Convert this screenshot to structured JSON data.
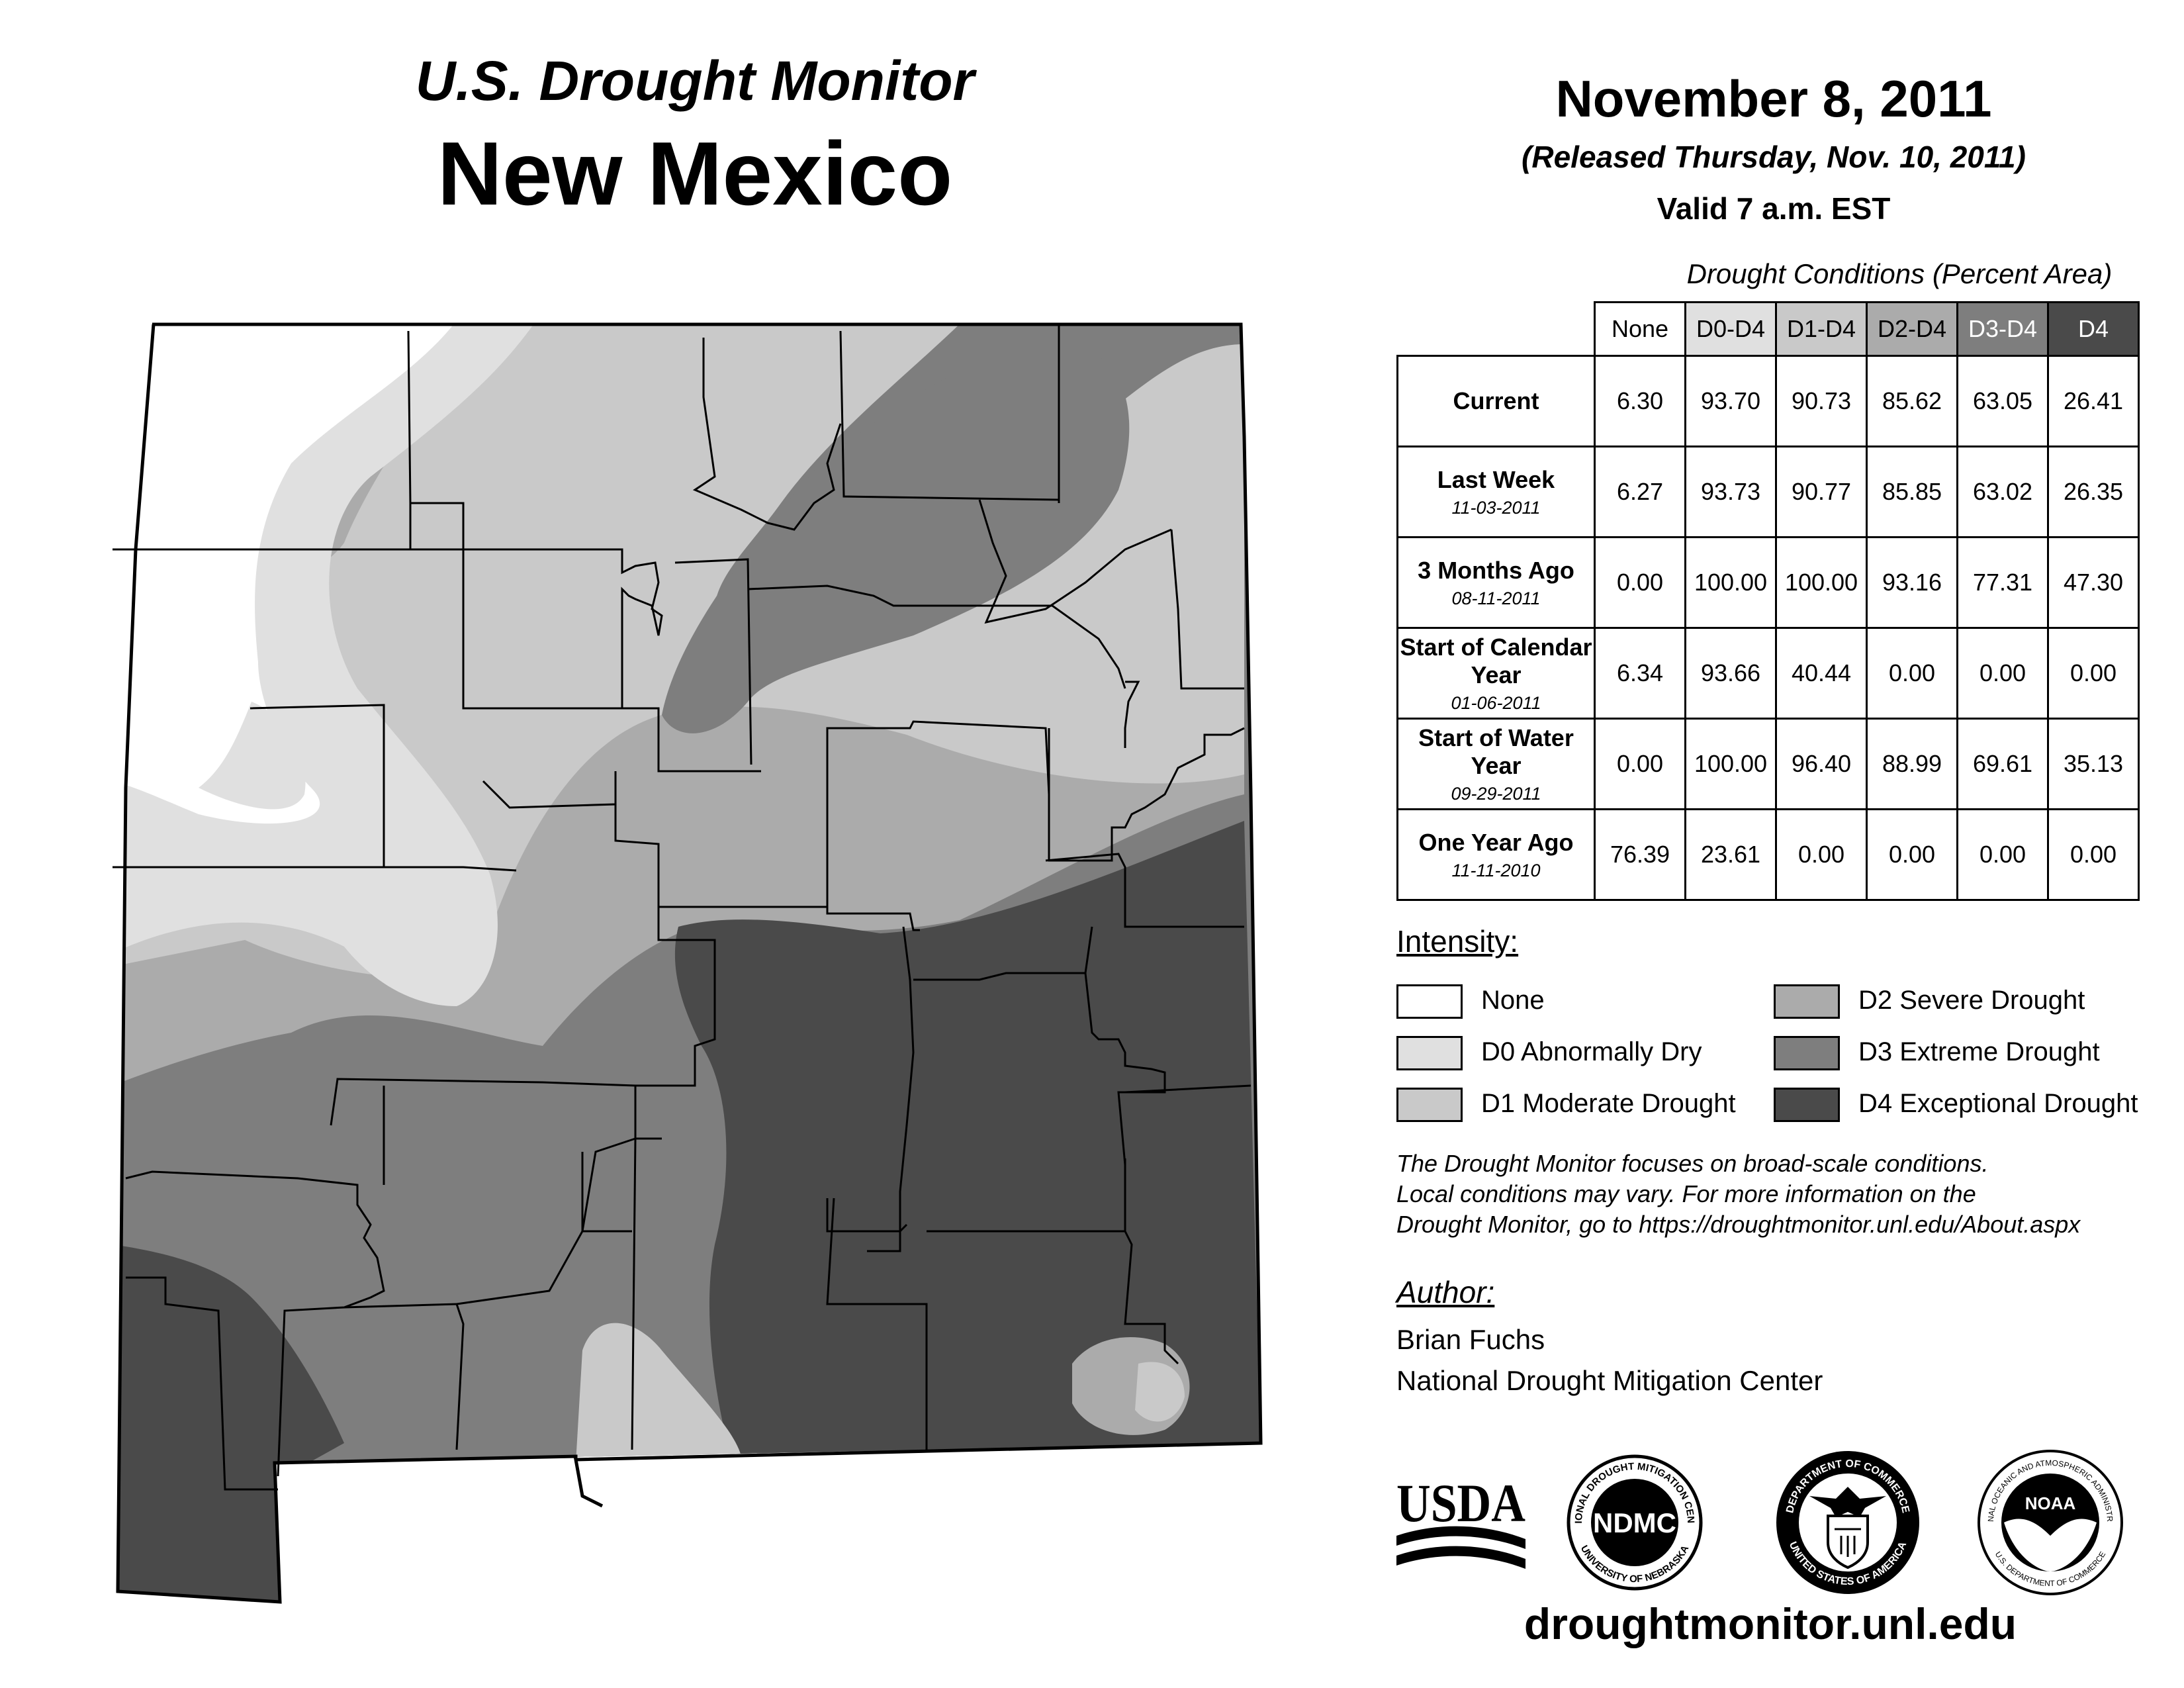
{
  "header": {
    "subtitle": "U.S. Drought Monitor",
    "state": "New Mexico",
    "date": "November 8, 2011",
    "released": "(Released Thursday, Nov. 10, 2011)",
    "valid": "Valid 7 a.m. EST"
  },
  "table": {
    "caption": "Drought Conditions (Percent Area)",
    "columns": [
      "None",
      "D0-D4",
      "D1-D4",
      "D2-D4",
      "D3-D4",
      "D4"
    ],
    "rows": [
      {
        "label": "Current",
        "date": "",
        "values": [
          "6.30",
          "93.70",
          "90.73",
          "85.62",
          "63.05",
          "26.41"
        ]
      },
      {
        "label": "Last Week",
        "date": "11-03-2011",
        "values": [
          "6.27",
          "93.73",
          "90.77",
          "85.85",
          "63.02",
          "26.35"
        ]
      },
      {
        "label": "3 Months Ago",
        "date": "08-11-2011",
        "values": [
          "0.00",
          "100.00",
          "100.00",
          "93.16",
          "77.31",
          "47.30"
        ]
      },
      {
        "label": "Start of Calendar Year",
        "date": "01-06-2011",
        "values": [
          "6.34",
          "93.66",
          "40.44",
          "0.00",
          "0.00",
          "0.00"
        ]
      },
      {
        "label": "Start of Water Year",
        "date": "09-29-2011",
        "values": [
          "0.00",
          "100.00",
          "96.40",
          "88.99",
          "69.61",
          "35.13"
        ]
      },
      {
        "label": "One Year Ago",
        "date": "11-11-2010",
        "values": [
          "76.39",
          "23.61",
          "0.00",
          "0.00",
          "0.00",
          "0.00"
        ]
      }
    ]
  },
  "legend": {
    "title": "Intensity:",
    "items": [
      {
        "label": "None",
        "color": "#ffffff"
      },
      {
        "label": "D0 Abnormally Dry",
        "color": "#e0e0e0"
      },
      {
        "label": "D1 Moderate Drought",
        "color": "#c9c9c9"
      },
      {
        "label": "D2 Severe Drought",
        "color": "#ababab"
      },
      {
        "label": "D3 Extreme Drought",
        "color": "#7e7e7e"
      },
      {
        "label": "D4 Exceptional Drought",
        "color": "#4a4a4a"
      }
    ]
  },
  "note": {
    "line1": "The Drought Monitor focuses on broad-scale conditions.",
    "line2": "Local conditions may vary. For more information on the",
    "line3": "Drought Monitor, go to https://droughtmonitor.unl.edu/About.aspx"
  },
  "author": {
    "title": "Author:",
    "name": "Brian Fuchs",
    "org": "National Drought Mitigation Center"
  },
  "logos": {
    "usda": "USDA",
    "ndmc": "NDMC",
    "ndmc_ring_top": "NATIONAL DROUGHT MITIGATION CENTER",
    "ndmc_ring_bottom": "UNIVERSITY OF NEBRASKA",
    "doc_ring_top": "DEPARTMENT OF COMMERCE",
    "doc_ring_bottom": "UNITED STATES OF AMERICA",
    "noaa": "NOAA",
    "noaa_ring_top": "NATIONAL OCEANIC AND ATMOSPHERIC ADMINISTRATION",
    "noaa_ring_bottom": "U.S. DEPARTMENT OF COMMERCE"
  },
  "footer": {
    "url": "droughtmonitor.unl.edu"
  }
}
